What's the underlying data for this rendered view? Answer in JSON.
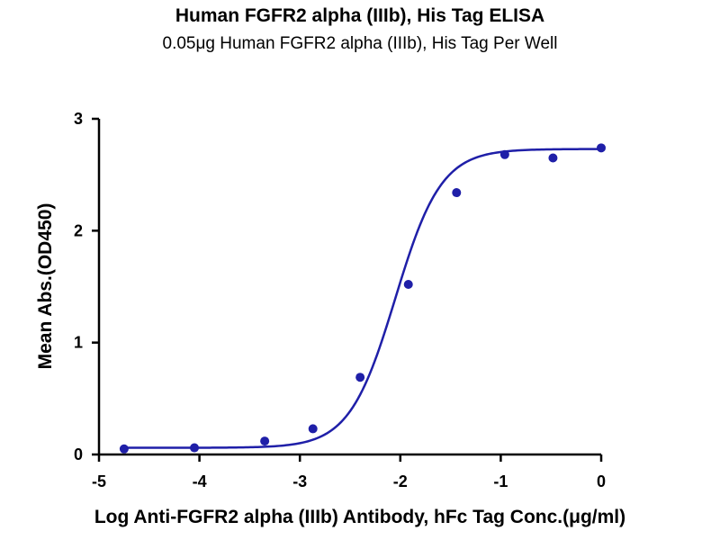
{
  "chart_data": {
    "type": "scatter",
    "title": "Human FGFR2 alpha (IIIb), His Tag ELISA",
    "subtitle": "0.05μg Human FGFR2 alpha (IIIb), His Tag Per Well",
    "xlabel": "Log Anti-FGFR2 alpha (IIIb) Antibody, hFc Tag Conc.(μg/ml)",
    "ylabel": "Mean Abs.(OD450)",
    "xlim": [
      -5,
      0
    ],
    "ylim": [
      0,
      3
    ],
    "x_ticks": [
      "-5",
      "-4",
      "-3",
      "-2",
      "-1",
      "0"
    ],
    "y_ticks": [
      "0",
      "1",
      "2",
      "3"
    ],
    "grid": false,
    "color": "#1f1fa8",
    "series": [
      {
        "points": [
          {
            "x": -4.75,
            "y": 0.05
          },
          {
            "x": -4.05,
            "y": 0.06
          },
          {
            "x": -3.35,
            "y": 0.12
          },
          {
            "x": -2.87,
            "y": 0.23
          },
          {
            "x": -2.4,
            "y": 0.69
          },
          {
            "x": -1.92,
            "y": 1.52
          },
          {
            "x": -1.44,
            "y": 2.34
          },
          {
            "x": -0.96,
            "y": 2.68
          },
          {
            "x": -0.48,
            "y": 2.65
          },
          {
            "x": 0.0,
            "y": 2.74
          }
        ],
        "fit": {
          "model": "4PL",
          "bottom": 0.06,
          "top": 2.73,
          "logEC50": -2.05,
          "hill": 1.9
        }
      }
    ]
  }
}
